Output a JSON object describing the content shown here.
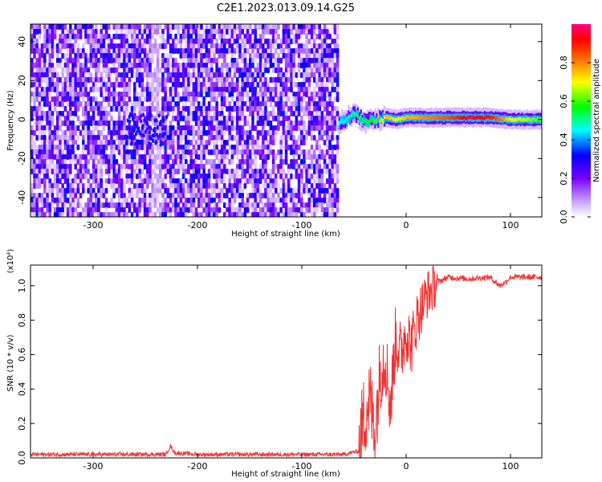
{
  "title": "C2E1.2023.013.09.14.G25",
  "chart_data": [
    {
      "type": "heatmap",
      "xlabel": "Height of straight line (km)",
      "ylabel": "Frequency (Hz)",
      "xlim": [
        -360,
        130
      ],
      "ylim": [
        -50,
        49
      ],
      "xticks": [
        -300,
        -200,
        -100,
        0,
        100
      ],
      "yticks": [
        -40,
        -20,
        0,
        20,
        40
      ],
      "colorbar": {
        "label": "Normalized spectral amplitude",
        "range": [
          0,
          1
        ],
        "ticks": [
          "0.0",
          "0.2",
          "0.4",
          "0.6",
          "0.8"
        ],
        "colormap": "rainbow",
        "colors": [
          "#ffffff",
          "#8a2be2",
          "#0000ff",
          "#00ffff",
          "#00ff00",
          "#ffff00",
          "#ff0000",
          "#ff0080"
        ]
      },
      "noise_region_x": [
        -360,
        -65
      ],
      "signal_track": {
        "x": [
          -65,
          -50,
          -40,
          -30,
          -20,
          -10,
          0,
          20,
          40,
          60,
          80,
          100,
          130
        ],
        "freq_hz": [
          -2,
          3,
          -1,
          0,
          1,
          0,
          1,
          1,
          1,
          1,
          1,
          0,
          0
        ],
        "amplitude": [
          0.45,
          0.5,
          0.55,
          0.6,
          0.75,
          0.7,
          0.75,
          0.8,
          0.85,
          0.95,
          0.9,
          0.7,
          0.6
        ]
      }
    },
    {
      "type": "line",
      "xlabel": "Height of straight line (km)",
      "ylabel": "SNR (10 * v/v)",
      "multiplier": "(x10⁴)",
      "xlim": [
        -360,
        130
      ],
      "ylim": [
        0,
        1.12
      ],
      "xticks": [
        -300,
        -200,
        -100,
        0,
        100
      ],
      "yticks": [
        "0.0",
        "0.2",
        "0.4",
        "0.6",
        "0.8",
        "1.0"
      ],
      "color": "#ee3333",
      "series": [
        {
          "x": [
            -360,
            -300,
            -250,
            -230,
            -226,
            -222,
            -200,
            -150,
            -100,
            -60,
            -45,
            -40,
            -35,
            -30,
            -25,
            -20,
            -15,
            -10,
            -5,
            0,
            5,
            10,
            15,
            20,
            25,
            30,
            40,
            60,
            80,
            90,
            95,
            100,
            130
          ],
          "y": [
            0.02,
            0.02,
            0.02,
            0.02,
            0.07,
            0.03,
            0.02,
            0.02,
            0.02,
            0.02,
            0.04,
            0.25,
            0.35,
            0.15,
            0.5,
            0.6,
            0.3,
            0.7,
            0.6,
            0.75,
            0.65,
            0.8,
            0.88,
            0.95,
            0.98,
            1.02,
            1.05,
            1.04,
            1.05,
            1.0,
            1.02,
            1.05,
            1.05
          ]
        }
      ]
    }
  ]
}
